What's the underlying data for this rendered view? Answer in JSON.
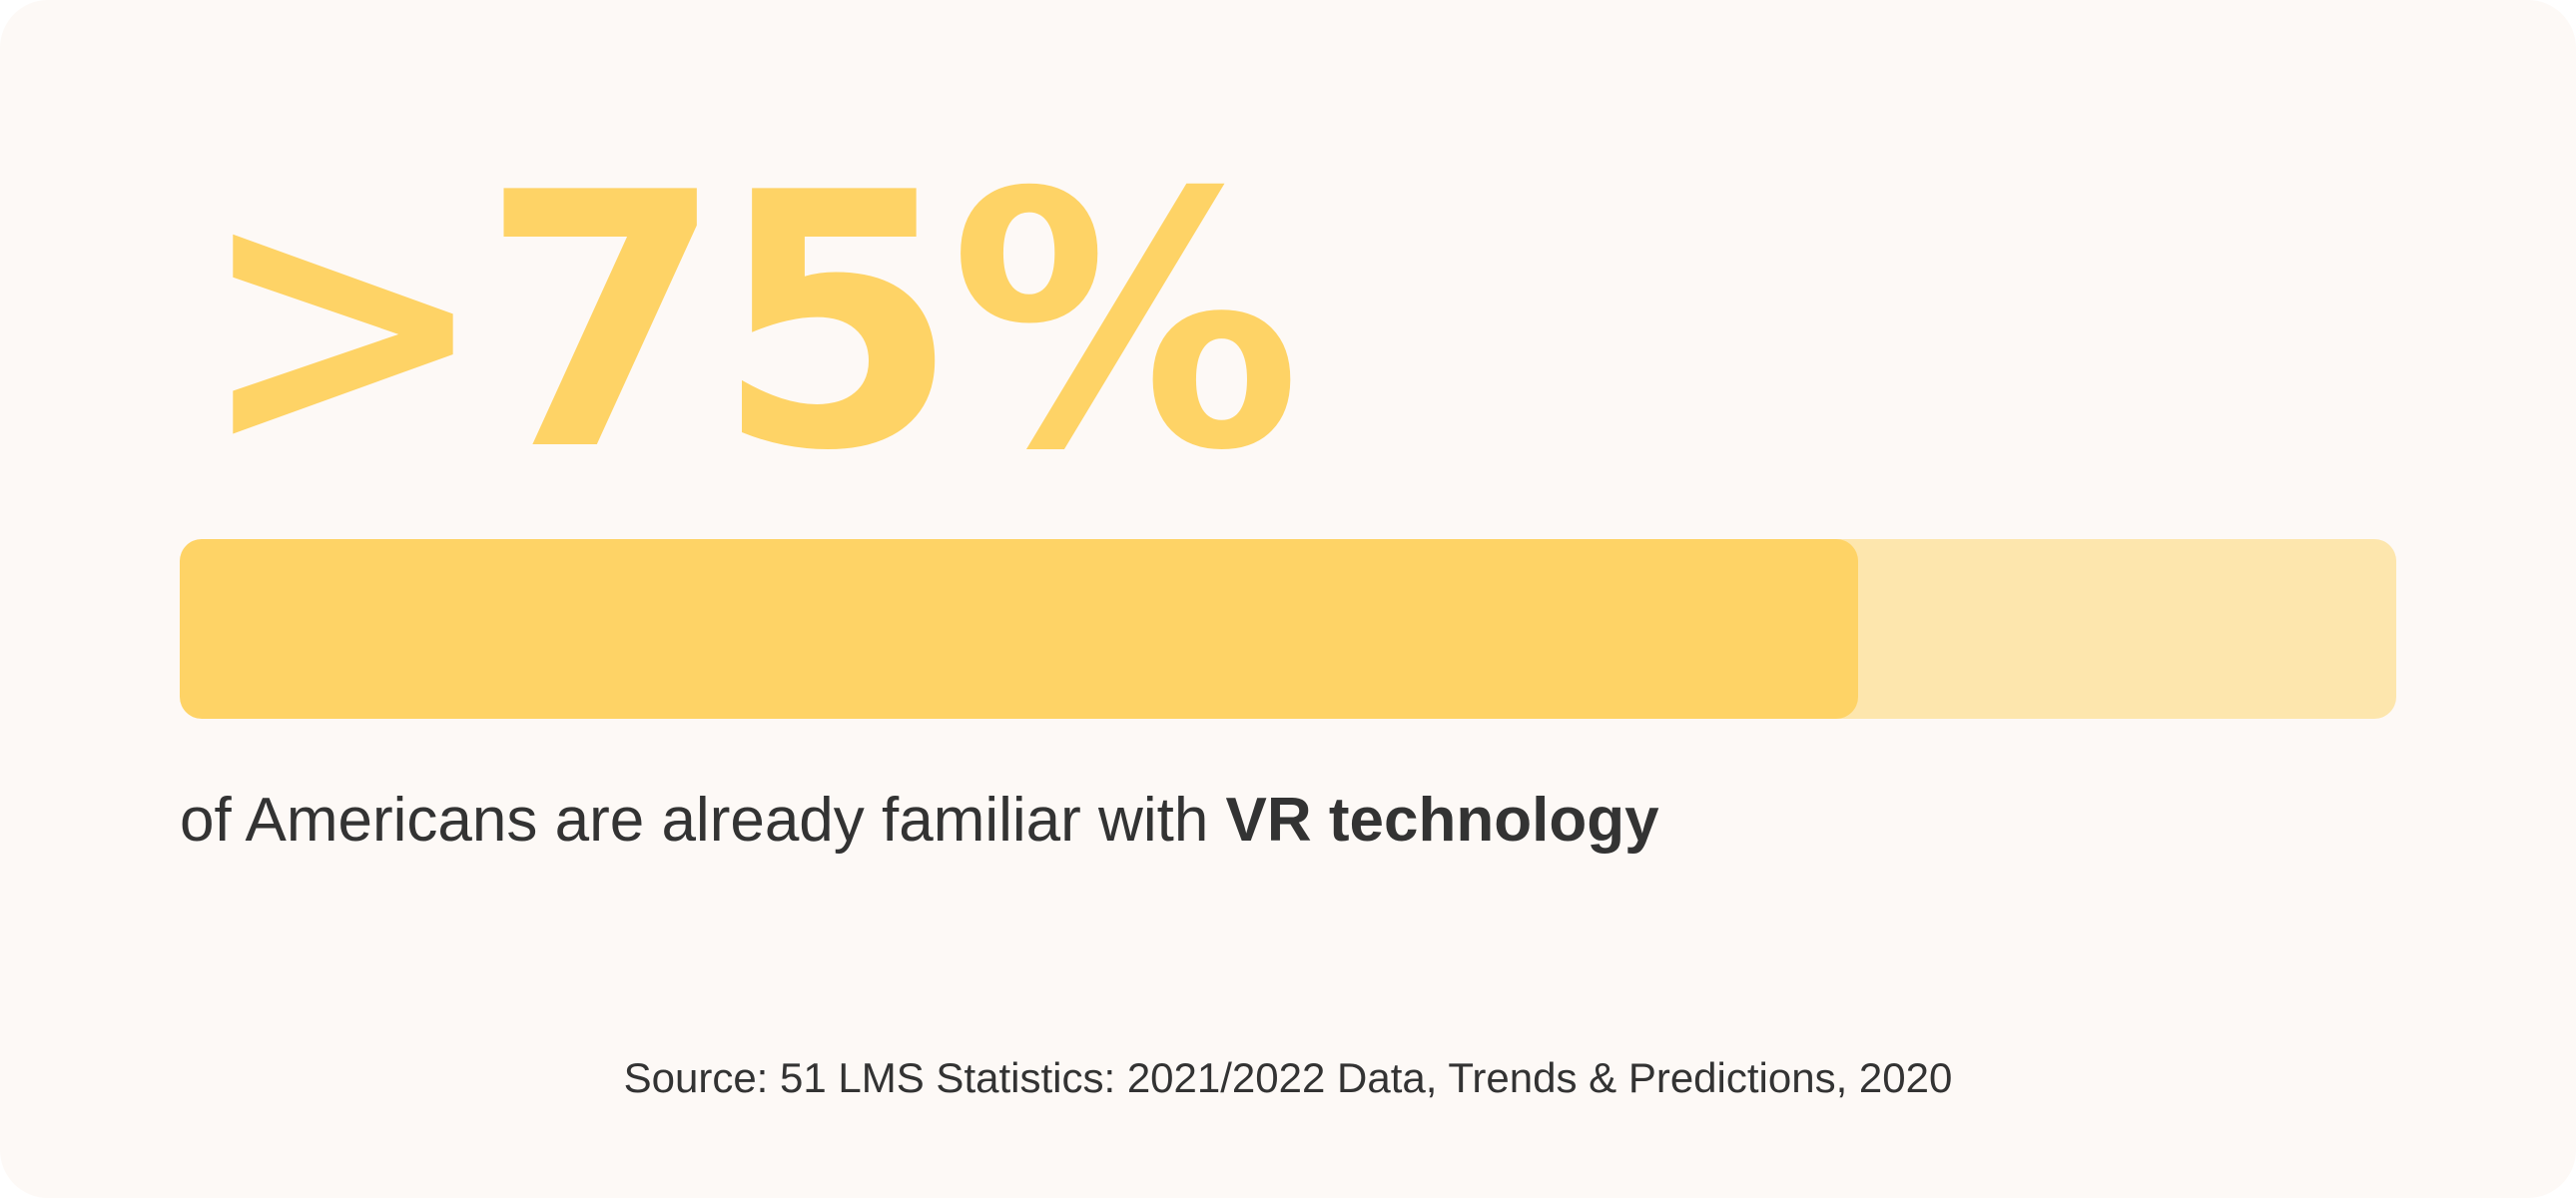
{
  "stat": {
    "value_text": ">75%",
    "fill_fraction": 0.757
  },
  "caption": {
    "lead": "of Americans are already familiar with ",
    "emphasis": "VR technology"
  },
  "source": {
    "text": "Source: 51 LMS Statistics: 2021/2022 Data, Trends & Predictions, 2020"
  },
  "colors": {
    "background": "#fdf9f6",
    "accent": "#fed366",
    "track": "#fde6ad",
    "text": "#333333"
  }
}
